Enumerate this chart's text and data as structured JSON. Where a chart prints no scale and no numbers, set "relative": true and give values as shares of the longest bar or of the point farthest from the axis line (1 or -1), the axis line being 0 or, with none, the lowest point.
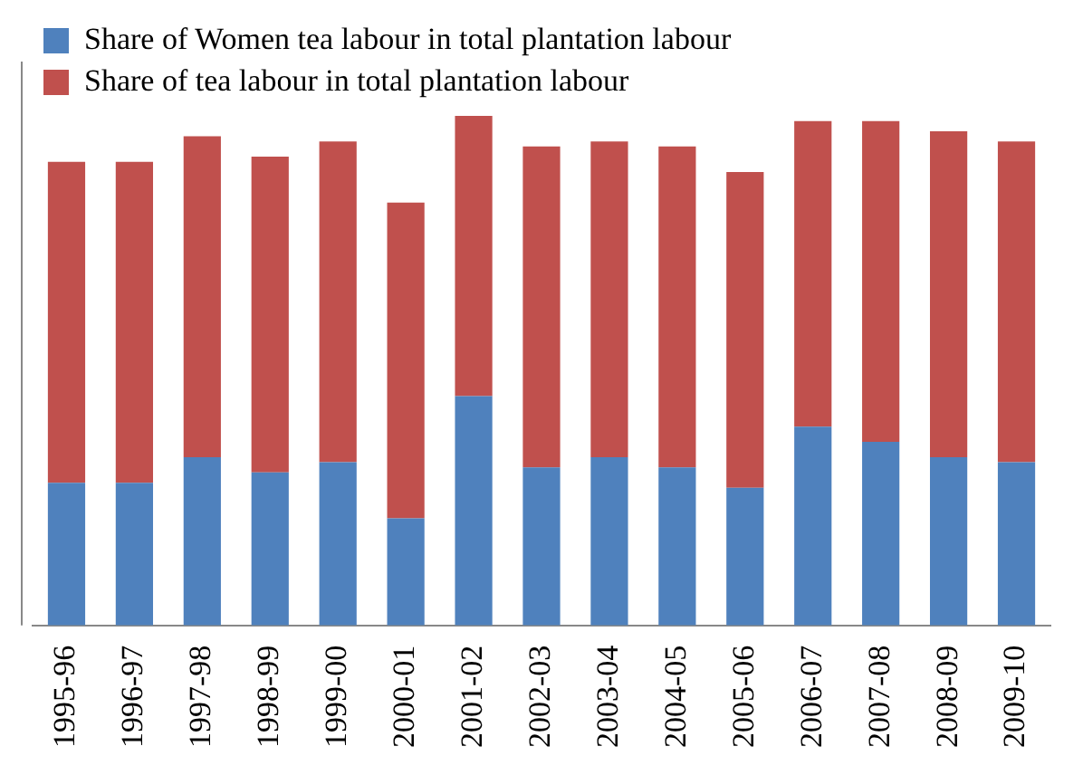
{
  "chart_data": {
    "type": "bar",
    "stacked": true,
    "relative": true,
    "legend": "top left",
    "grid": false,
    "categories": [
      "1995-96",
      "1996-97",
      "1997-98",
      "1998-99",
      "1999-00",
      "2000-01",
      "2001-02",
      "2002-03",
      "2003-04",
      "2004-05",
      "2005-06",
      "2006-07",
      "2007-08",
      "2008-09",
      "2009-10"
    ],
    "series": [
      {
        "name": "Share of Women tea labour in total plantation labour",
        "color": "#4f81bd",
        "values": [
          0.28,
          0.28,
          0.33,
          0.3,
          0.32,
          0.21,
          0.45,
          0.31,
          0.33,
          0.31,
          0.27,
          0.39,
          0.36,
          0.33,
          0.32
        ]
      },
      {
        "name": "Share of tea labour in total plantation labour",
        "color": "#c0504d",
        "values": [
          0.63,
          0.63,
          0.63,
          0.62,
          0.63,
          0.62,
          0.55,
          0.63,
          0.62,
          0.63,
          0.62,
          0.6,
          0.63,
          0.64,
          0.63
        ]
      }
    ]
  }
}
